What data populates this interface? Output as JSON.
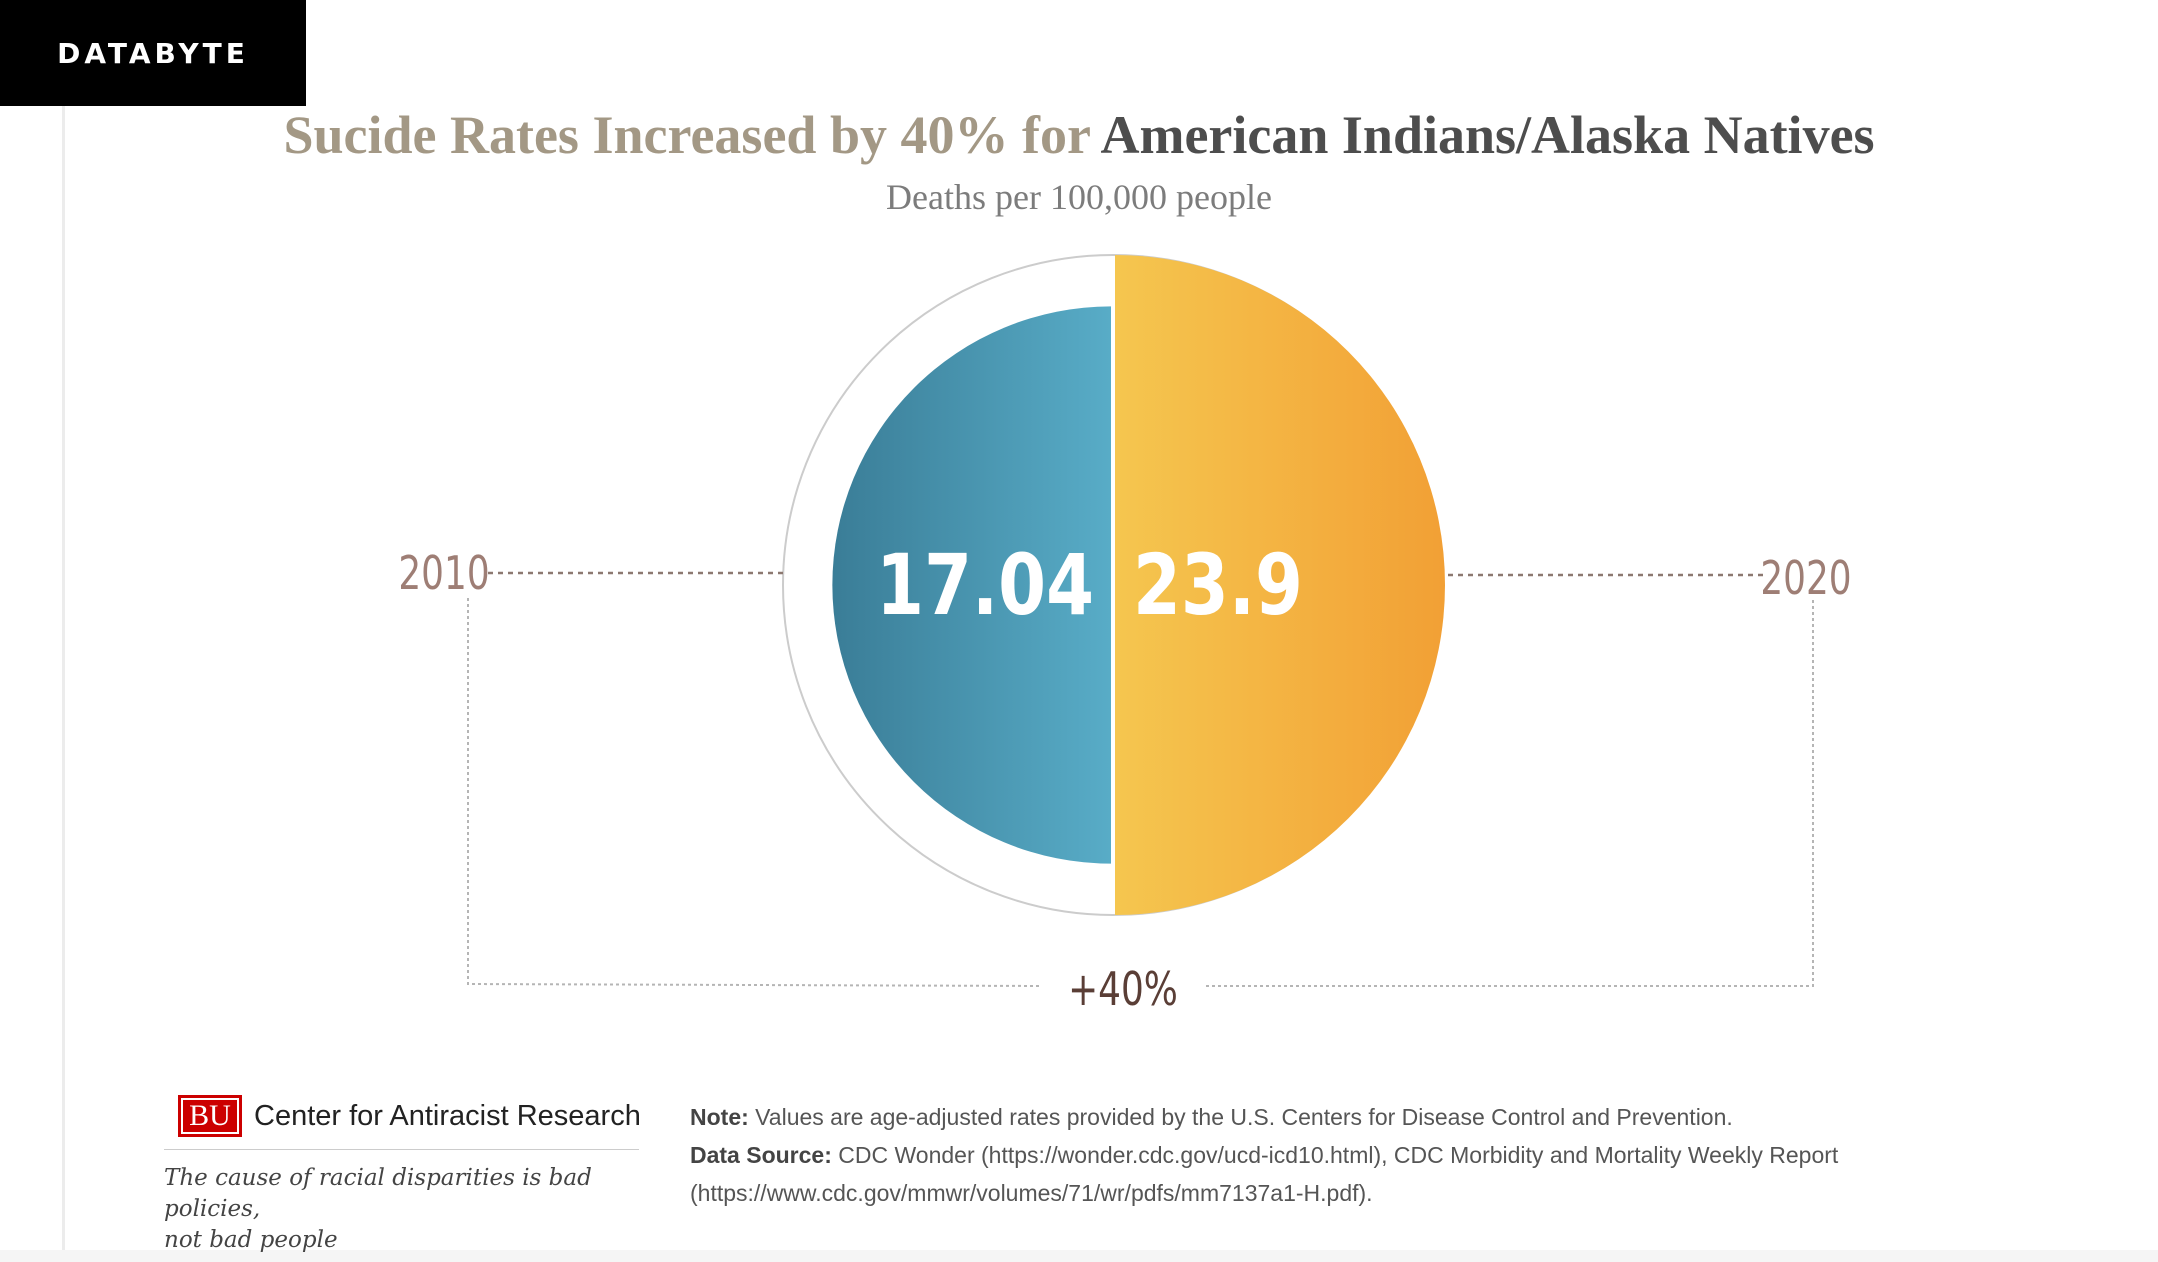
{
  "badge": "DATABYTE",
  "chart_data": {
    "type": "pie",
    "title_part1": "Sucide Rates Increased by 40% for",
    "title_part2": "American Indians/Alaska Natives",
    "subtitle": "Deaths per 100,000 people",
    "categories": [
      "2010",
      "2020"
    ],
    "values": [
      17.04,
      23.9
    ],
    "value_labels": [
      "17.04",
      "23.9"
    ],
    "change_label": "+40%",
    "colors": {
      "2010": [
        "#3a7d97",
        "#58acc7"
      ],
      "2020": [
        "#f5c64f",
        "#f2a035"
      ],
      "year_label": "#9e7e75",
      "change_label": "#5a3e36"
    }
  },
  "footer": {
    "logo": "BU",
    "org": "Center for Antiracist Research",
    "tagline_line1": "The cause of racial disparities is bad policies,",
    "tagline_line2": "not bad people",
    "note_label": "Note:",
    "note_text": " Values are age-adjusted rates provided by the U.S. Centers for Disease Control and Prevention.",
    "source_label": "Data Source:",
    "source_text": " CDC Wonder (https://wonder.cdc.gov/ucd-icd10.html), CDC Morbidity and Mortality Weekly Report",
    "source_text2": "(https://www.cdc.gov/mmwr/volumes/71/wr/pdfs/mm7137a1-H.pdf)."
  }
}
